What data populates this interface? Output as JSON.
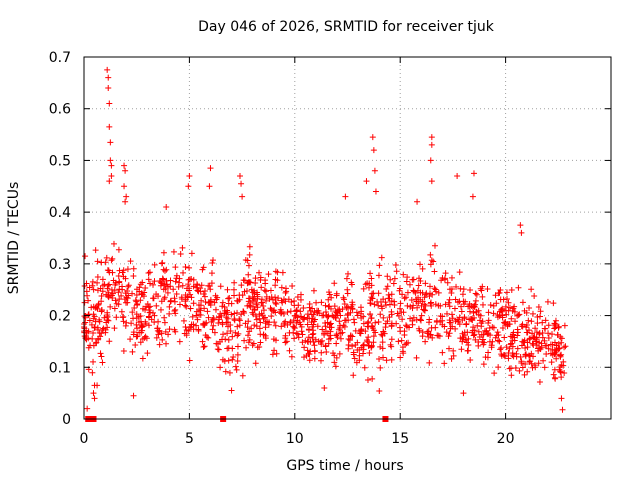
{
  "chart_data": {
    "type": "scatter",
    "title": "Day 046 of 2026, SRMTID for receiver tjuk",
    "xlabel": "GPS time / hours",
    "ylabel": "SRMTID / TECUs",
    "xlim": [
      0,
      25
    ],
    "ylim": [
      0,
      0.7
    ],
    "x_ticks": [
      0,
      5,
      10,
      15,
      20
    ],
    "x_tick_labels": [
      "0",
      "5",
      "10",
      "15",
      "20"
    ],
    "y_ticks": [
      0,
      0.1,
      0.2,
      0.3,
      0.4,
      0.5,
      0.6,
      0.7
    ],
    "y_tick_labels": [
      "0",
      "0.1",
      "0.2",
      "0.3",
      "0.4",
      "0.5",
      "0.6",
      "0.7"
    ],
    "grid": true,
    "marker": "+",
    "series_color": "#ff0000",
    "zero_markers": [
      0.2,
      0.45,
      6.6,
      14.3
    ],
    "envelope_hours": [
      0,
      0.5,
      1.0,
      1.5,
      2.0,
      2.5,
      3.0,
      3.5,
      4.0,
      4.5,
      5.0,
      5.5,
      6.0,
      6.5,
      7.0,
      7.5,
      8.0,
      8.5,
      9.0,
      9.5,
      10.0,
      10.5,
      11.0,
      11.5,
      12.0,
      12.5,
      13.0,
      13.5,
      14.0,
      14.5,
      15.0,
      15.5,
      16.0,
      16.5,
      17.0,
      17.5,
      18.0,
      18.5,
      19.0,
      19.5,
      20.0,
      20.5,
      21.0,
      21.5,
      22.0,
      22.5,
      23.0
    ],
    "envelope_center": [
      0.21,
      0.18,
      0.22,
      0.24,
      0.22,
      0.21,
      0.21,
      0.22,
      0.23,
      0.24,
      0.22,
      0.23,
      0.22,
      0.18,
      0.17,
      0.2,
      0.22,
      0.21,
      0.2,
      0.2,
      0.19,
      0.17,
      0.17,
      0.18,
      0.18,
      0.2,
      0.18,
      0.19,
      0.19,
      0.2,
      0.2,
      0.21,
      0.22,
      0.22,
      0.21,
      0.2,
      0.2,
      0.21,
      0.19,
      0.19,
      0.18,
      0.16,
      0.15,
      0.15,
      0.15,
      0.14,
      0.12
    ],
    "envelope_spread": [
      0.05,
      0.09,
      0.1,
      0.08,
      0.06,
      0.06,
      0.06,
      0.06,
      0.07,
      0.07,
      0.07,
      0.07,
      0.07,
      0.06,
      0.06,
      0.07,
      0.07,
      0.06,
      0.06,
      0.06,
      0.05,
      0.05,
      0.05,
      0.05,
      0.06,
      0.07,
      0.07,
      0.08,
      0.08,
      0.07,
      0.07,
      0.07,
      0.08,
      0.08,
      0.07,
      0.07,
      0.06,
      0.06,
      0.06,
      0.06,
      0.05,
      0.06,
      0.06,
      0.05,
      0.05,
      0.05,
      0.04
    ],
    "peak_points": [
      [
        1.1,
        0.675
      ],
      [
        1.15,
        0.66
      ],
      [
        1.15,
        0.64
      ],
      [
        1.2,
        0.61
      ],
      [
        1.2,
        0.565
      ],
      [
        1.25,
        0.535
      ],
      [
        1.25,
        0.5
      ],
      [
        1.3,
        0.49
      ],
      [
        1.3,
        0.47
      ],
      [
        1.2,
        0.46
      ],
      [
        1.9,
        0.49
      ],
      [
        1.95,
        0.48
      ],
      [
        1.9,
        0.45
      ],
      [
        2.0,
        0.43
      ],
      [
        1.95,
        0.42
      ],
      [
        5.0,
        0.47
      ],
      [
        4.95,
        0.45
      ],
      [
        6.0,
        0.485
      ],
      [
        5.95,
        0.45
      ],
      [
        7.4,
        0.47
      ],
      [
        7.45,
        0.455
      ],
      [
        7.5,
        0.43
      ],
      [
        13.7,
        0.545
      ],
      [
        13.75,
        0.52
      ],
      [
        13.8,
        0.48
      ],
      [
        13.85,
        0.44
      ],
      [
        16.5,
        0.545
      ],
      [
        16.5,
        0.53
      ],
      [
        16.45,
        0.5
      ],
      [
        16.5,
        0.46
      ],
      [
        17.7,
        0.47
      ],
      [
        18.5,
        0.475
      ],
      [
        18.45,
        0.43
      ],
      [
        20.7,
        0.375
      ],
      [
        20.75,
        0.36
      ],
      [
        12.4,
        0.43
      ],
      [
        13.4,
        0.46
      ],
      [
        15.8,
        0.42
      ],
      [
        0.05,
        0.315
      ],
      [
        3.9,
        0.41
      ],
      [
        0.5,
        0.04
      ],
      [
        0.45,
        0.05
      ],
      [
        0.5,
        0.065
      ],
      [
        2.35,
        0.045
      ],
      [
        11.4,
        0.06
      ],
      [
        22.7,
        0.018
      ],
      [
        22.65,
        0.04
      ],
      [
        7.0,
        0.055
      ],
      [
        18.0,
        0.05
      ],
      [
        0.15,
        0.02
      ]
    ]
  }
}
